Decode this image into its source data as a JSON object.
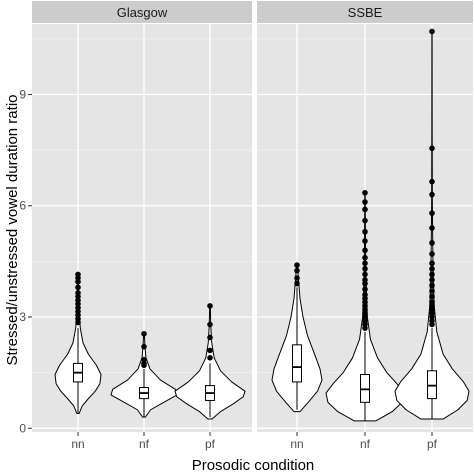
{
  "chart_data": {
    "type": "violin",
    "title": "",
    "xlabel": "Prosodic condition",
    "ylabel": "Stressed/unstressed vowel duration ratio",
    "ylim": [
      -0.1,
      10.9
    ],
    "yticks": [
      0,
      3,
      6,
      9
    ],
    "categories": [
      "nn",
      "nf",
      "pf"
    ],
    "grid": true,
    "legend": "none",
    "colors": {
      "panel_bg": "#e5e5e5",
      "strip_bg": "#cccccc",
      "grid_major": "#ffffff",
      "grid_minor": "#f2f2f2",
      "violin_fill": "#ffffff",
      "outline": "#000000"
    },
    "panels": [
      {
        "name": "Glasgow",
        "groups": [
          {
            "category": "nn",
            "summary": {
              "lower_whisker": 0.4,
              "q1": 1.25,
              "median": 1.5,
              "q3": 1.75,
              "upper_whisker": 2.7
            },
            "outliers": [
              2.85,
              2.95,
              3.05,
              3.15,
              3.25,
              3.35,
              3.45,
              3.55,
              3.65,
              3.8,
              3.95,
              4.05,
              4.15
            ],
            "density": [
              [
                0.4,
                0.05
              ],
              [
                0.6,
                0.18
              ],
              [
                0.8,
                0.45
              ],
              [
                1.0,
                0.75
              ],
              [
                1.2,
                0.95
              ],
              [
                1.45,
                1.0
              ],
              [
                1.7,
                0.8
              ],
              [
                2.0,
                0.45
              ],
              [
                2.3,
                0.22
              ],
              [
                2.7,
                0.1
              ],
              [
                3.2,
                0.04
              ],
              [
                3.7,
                0.02
              ],
              [
                4.15,
                0.01
              ]
            ]
          },
          {
            "category": "nf",
            "summary": {
              "lower_whisker": 0.3,
              "q1": 0.8,
              "median": 0.95,
              "q3": 1.1,
              "upper_whisker": 1.6
            },
            "outliers": [
              1.7,
              1.75,
              1.85,
              2.2,
              2.55
            ],
            "density": [
              [
                0.3,
                0.04
              ],
              [
                0.5,
                0.2
              ],
              [
                0.7,
                0.6
              ],
              [
                0.9,
                1.0
              ],
              [
                1.05,
                0.95
              ],
              [
                1.3,
                0.5
              ],
              [
                1.6,
                0.18
              ],
              [
                1.9,
                0.06
              ],
              [
                2.2,
                0.03
              ],
              [
                2.55,
                0.01
              ]
            ]
          },
          {
            "category": "pf",
            "summary": {
              "lower_whisker": 0.3,
              "q1": 0.75,
              "median": 0.95,
              "q3": 1.15,
              "upper_whisker": 1.75
            },
            "outliers": [
              1.9,
              2.1,
              2.45,
              2.8,
              3.3
            ],
            "density": [
              [
                0.25,
                0.06
              ],
              [
                0.45,
                0.3
              ],
              [
                0.65,
                0.65
              ],
              [
                0.85,
                0.95
              ],
              [
                1.0,
                1.0
              ],
              [
                1.25,
                0.62
              ],
              [
                1.55,
                0.3
              ],
              [
                1.9,
                0.12
              ],
              [
                2.3,
                0.05
              ],
              [
                2.8,
                0.02
              ],
              [
                3.3,
                0.01
              ]
            ]
          }
        ]
      },
      {
        "name": "SSBE",
        "groups": [
          {
            "category": "nn",
            "summary": {
              "lower_whisker": 0.5,
              "q1": 1.25,
              "median": 1.65,
              "q3": 2.25,
              "upper_whisker": 3.8
            },
            "outliers": [
              3.9,
              4.05,
              4.25,
              4.4
            ],
            "density": [
              [
                0.45,
                0.12
              ],
              [
                0.7,
                0.45
              ],
              [
                1.0,
                0.82
              ],
              [
                1.3,
                1.0
              ],
              [
                1.6,
                0.92
              ],
              [
                2.0,
                0.7
              ],
              [
                2.5,
                0.42
              ],
              [
                3.0,
                0.24
              ],
              [
                3.5,
                0.12
              ],
              [
                4.0,
                0.06
              ],
              [
                4.4,
                0.02
              ]
            ]
          },
          {
            "category": "nf",
            "summary": {
              "lower_whisker": 0.2,
              "q1": 0.7,
              "median": 1.05,
              "q3": 1.45,
              "upper_whisker": 2.6
            },
            "outliers": [
              2.7,
              2.8,
              2.9,
              3.0,
              3.1,
              3.2,
              3.3,
              3.4,
              3.5,
              3.6,
              3.75,
              3.9,
              4.0,
              4.15,
              4.3,
              4.45,
              4.6,
              4.8,
              5.05,
              5.3,
              5.6,
              5.9,
              6.1,
              6.35
            ],
            "density": [
              [
                0.2,
                0.28
              ],
              [
                0.45,
                0.7
              ],
              [
                0.7,
                0.95
              ],
              [
                0.95,
                1.0
              ],
              [
                1.2,
                0.82
              ],
              [
                1.5,
                0.56
              ],
              [
                1.9,
                0.32
              ],
              [
                2.4,
                0.14
              ],
              [
                3.0,
                0.06
              ],
              [
                4.0,
                0.025
              ],
              [
                5.0,
                0.012
              ],
              [
                6.35,
                0.005
              ]
            ]
          },
          {
            "category": "pf",
            "summary": {
              "lower_whisker": 0.25,
              "q1": 0.8,
              "median": 1.15,
              "q3": 1.55,
              "upper_whisker": 2.7
            },
            "outliers": [
              2.8,
              2.9,
              3.0,
              3.1,
              3.2,
              3.3,
              3.4,
              3.55,
              3.7,
              3.85,
              4.0,
              4.15,
              4.3,
              4.45,
              4.7,
              5.0,
              5.4,
              5.8,
              6.3,
              6.65,
              7.55,
              10.7
            ],
            "density": [
              [
                0.25,
                0.3
              ],
              [
                0.5,
                0.7
              ],
              [
                0.75,
                0.95
              ],
              [
                1.0,
                1.0
              ],
              [
                1.25,
                0.85
              ],
              [
                1.6,
                0.55
              ],
              [
                2.0,
                0.3
              ],
              [
                2.6,
                0.13
              ],
              [
                3.3,
                0.06
              ],
              [
                4.5,
                0.025
              ],
              [
                6.0,
                0.01
              ],
              [
                8.0,
                0.005
              ],
              [
                10.7,
                0.003
              ]
            ]
          }
        ]
      }
    ]
  }
}
